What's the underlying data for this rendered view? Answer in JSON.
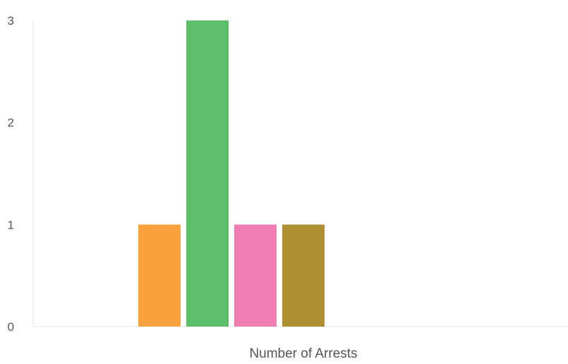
{
  "chart_data": {
    "type": "bar",
    "title": "",
    "xlabel": "Number of Arrests",
    "ylabel": "",
    "categories": [
      "Number of Arrests"
    ],
    "ylim": [
      0,
      3
    ],
    "yticks": [
      0,
      1,
      2,
      3
    ],
    "grid": false,
    "legend": "none",
    "series": [
      {
        "values": [
          1
        ],
        "color": "#F9A03F"
      },
      {
        "values": [
          3
        ],
        "color": "#5DBE6A"
      },
      {
        "values": [
          1
        ],
        "color": "#EF7DB2"
      },
      {
        "values": [
          1
        ],
        "color": "#AE8F32"
      }
    ]
  }
}
